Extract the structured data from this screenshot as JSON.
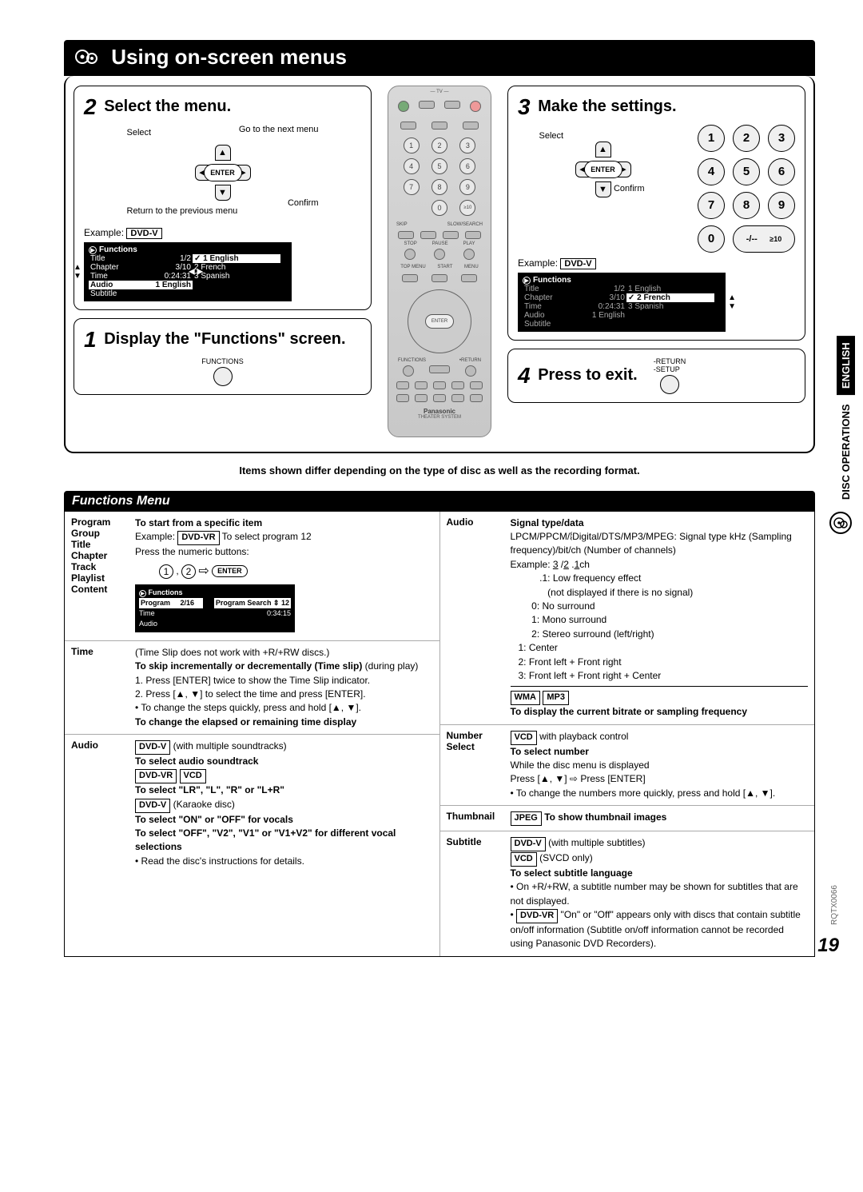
{
  "page_title": "Using on-screen menus",
  "side_tab": {
    "language": "ENGLISH",
    "section": "DISC OPERATIONS"
  },
  "page_number": "19",
  "doc_code": "RQTX0066",
  "note": "Items shown differ depending on the type of disc as well as the recording format.",
  "section_header": "Functions Menu",
  "step1": {
    "num": "1",
    "title": "Display the \"Functions\" screen.",
    "btn_label": "FUNCTIONS"
  },
  "step2": {
    "num": "2",
    "title": "Select the menu.",
    "labels": {
      "select": "Select",
      "goto": "Go to the next menu",
      "return": "Return to the previous menu",
      "confirm": "Confirm",
      "enter": "ENTER"
    },
    "example_label": "Example:",
    "example_tag": "DVD-V",
    "osd": {
      "title": "Functions",
      "left": [
        {
          "k": "Title",
          "v": "1/2"
        },
        {
          "k": "Chapter",
          "v": "3/10"
        },
        {
          "k": "Time",
          "v": "0:24:31"
        },
        {
          "k": "Audio",
          "v": "1 English",
          "hl": true
        },
        {
          "k": "Subtitle",
          "v": ""
        }
      ],
      "right": [
        {
          "k": "1 English",
          "check": true,
          "hl": true
        },
        {
          "k": "2 French"
        },
        {
          "k": "3 Spanish"
        }
      ]
    }
  },
  "step3": {
    "num": "3",
    "title": "Make the settings.",
    "labels": {
      "select": "Select",
      "confirm": "Confirm",
      "enter": "ENTER"
    },
    "example_label": "Example:",
    "example_tag": "DVD-V",
    "keypad": [
      "1",
      "2",
      "3",
      "4",
      "5",
      "6",
      "7",
      "8",
      "9",
      "0",
      "-/--  ≥10"
    ],
    "osd": {
      "title": "Functions",
      "left": [
        {
          "k": "Title",
          "v": "1/2"
        },
        {
          "k": "Chapter",
          "v": "3/10"
        },
        {
          "k": "Time",
          "v": "0:24:31"
        },
        {
          "k": "Audio",
          "v": "1 English"
        },
        {
          "k": "Subtitle",
          "v": ""
        }
      ],
      "right": [
        {
          "k": "1 English"
        },
        {
          "k": "2 French",
          "check": true,
          "active": true
        },
        {
          "k": "3 Spanish"
        }
      ]
    }
  },
  "step4": {
    "num": "4",
    "title": "Press to exit.",
    "btn_labels": [
      "-RETURN",
      "-SETUP"
    ]
  },
  "remote": {
    "brand": "Panasonic",
    "model": "THEATER SYSTEM",
    "enter": "ENTER",
    "functions": "FUNCTIONS",
    "return": "•RETURN"
  },
  "left_rows": [
    {
      "label": "Program\nGroup\nTitle\nChapter\nTrack\nPlaylist\nContent",
      "body_head": "To start from a specific item",
      "body_lines": [
        "Example: [DVD-VR] To select program 12",
        "Press the numeric buttons:"
      ],
      "osd": {
        "title": "Functions",
        "rows": [
          {
            "k": "Program",
            "v": "2/16",
            "extra": "Program Search ⇕ 12"
          },
          {
            "k": "Time",
            "v": "0:34:15"
          },
          {
            "k": "Audio",
            "v": ""
          }
        ]
      }
    },
    {
      "label": "Time",
      "lines": [
        "(Time Slip does not work with +R/+RW discs.)",
        "<b>To skip incrementally or decrementally (Time slip)</b> (during play)",
        "1. Press [ENTER] twice to show the Time Slip indicator.",
        "2. Press [▲, ▼] to select the time and press [ENTER].",
        "• To change the steps quickly, press and hold [▲, ▼].",
        "<b>To change the elapsed or remaining time display</b>"
      ]
    },
    {
      "label": "Audio",
      "lines": [
        "[DVD-V] (with multiple soundtracks)",
        "<b>To select audio soundtrack</b>",
        "[DVD-VR] [VCD]",
        "<b>To select \"LR\", \"L\", \"R\" or \"L+R\"</b>",
        "[DVD-V] (Karaoke disc)",
        "<b>To select \"ON\" or \"OFF\" for vocals</b>",
        "<b>To select \"OFF\", \"V2\", \"V1\" or \"V1+V2\" for different vocal selections</b>",
        "• Read the disc's instructions for details."
      ]
    }
  ],
  "right_rows": [
    {
      "label": "Audio",
      "lines": [
        "<b>Signal type/data</b>",
        "LPCM/PPCM/𝄔Digital/DTS/MP3/MPEG: Signal type kHz (Sampling frequency)/bit/ch (Number of channels)",
        "Example: <span class='underlined-digit'>3</span> /<span class='underlined-digit'>2</span> .<span class='underlined-digit'>1</span>ch",
        "&nbsp;&nbsp;&nbsp;&nbsp;&nbsp;&nbsp;&nbsp;&nbsp;&nbsp;&nbsp;&nbsp;.1: Low frequency effect",
        "&nbsp;&nbsp;&nbsp;&nbsp;&nbsp;&nbsp;&nbsp;&nbsp;&nbsp;&nbsp;&nbsp;&nbsp;&nbsp;&nbsp;(not displayed if there is no signal)",
        "&nbsp;&nbsp;&nbsp;&nbsp;&nbsp;&nbsp;&nbsp;&nbsp;0: No surround",
        "&nbsp;&nbsp;&nbsp;&nbsp;&nbsp;&nbsp;&nbsp;&nbsp;1: Mono surround",
        "&nbsp;&nbsp;&nbsp;&nbsp;&nbsp;&nbsp;&nbsp;&nbsp;2: Stereo surround (left/right)",
        "&nbsp;&nbsp;&nbsp;1: Center",
        "&nbsp;&nbsp;&nbsp;2: Front left + Front right",
        "&nbsp;&nbsp;&nbsp;3: Front left + Front right + Center",
        "<hr>",
        "[WMA] [MP3]",
        "<b>To display the current bitrate or sampling frequency</b>"
      ]
    },
    {
      "label": "Number Select",
      "lines": [
        "[VCD] with playback control",
        "<b>To select number</b>",
        "While the disc menu is displayed",
        "Press [▲, ▼] ⇨ Press [ENTER]",
        "• To change the numbers more quickly, press and hold [▲, ▼]."
      ]
    },
    {
      "label": "Thumbnail",
      "lines": [
        "[JPEG] <b>To show thumbnail images</b>"
      ]
    },
    {
      "label": "Subtitle",
      "lines": [
        "[DVD-V] (with multiple subtitles)",
        "[VCD] (SVCD only)",
        "<b>To select subtitle language</b>",
        "• On +R/+RW, a subtitle number may be shown for subtitles that are not displayed.",
        "• [DVD-VR] \"On\" or \"Off\" appears only with discs that contain subtitle on/off information (Subtitle on/off information cannot be recorded using Panasonic DVD Recorders)."
      ]
    }
  ]
}
